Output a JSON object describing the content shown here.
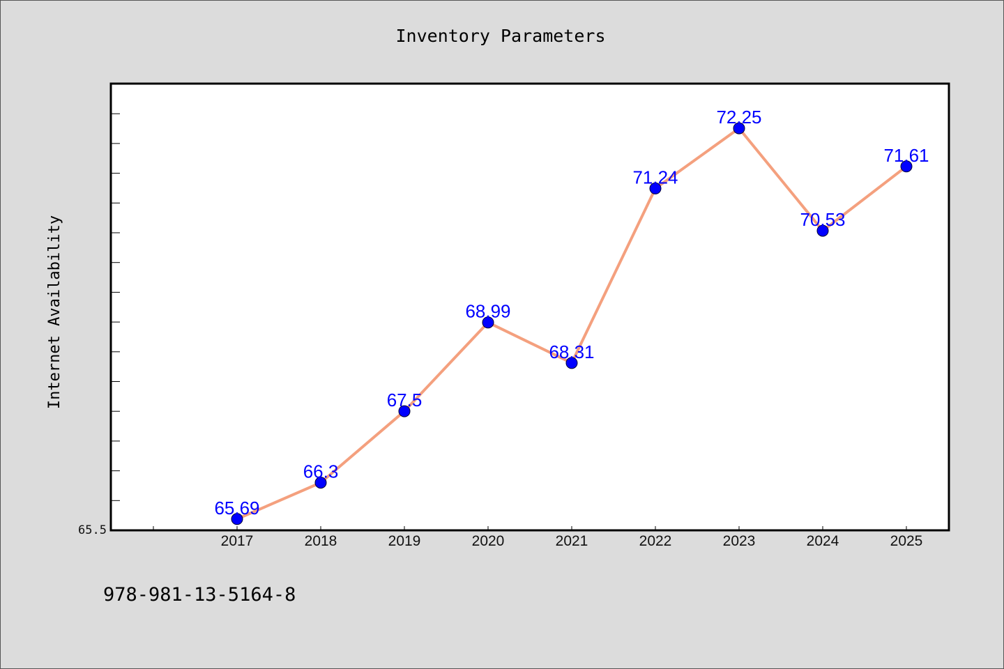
{
  "chart_data": {
    "type": "line",
    "title": "Inventory Parameters",
    "xlabel": "",
    "ylabel": "Internet Availability",
    "categories": [
      "2017",
      "2018",
      "2019",
      "2020",
      "2021",
      "2022",
      "2023",
      "2024",
      "2025"
    ],
    "series": [
      {
        "values": [
          65.69,
          66.3,
          67.5,
          68.99,
          68.31,
          71.24,
          72.25,
          70.53,
          71.61
        ],
        "labels": [
          "65.69",
          "66.3",
          "67.5",
          "68.99",
          "68.31",
          "71.24",
          "72.25",
          "70.53",
          "71.61"
        ],
        "line_color": "#f4a07e",
        "marker_color": "#0000ff"
      }
    ],
    "ylim": [
      65.5,
      73.0
    ],
    "yticks": [
      "65.5"
    ],
    "grid": false,
    "legend": "none"
  },
  "footer": {
    "isbn": "978-981-13-5164-8"
  },
  "colors": {
    "background": "#dcdcdc",
    "plot_background": "#ffffff",
    "line": "#f4a07e",
    "marker": "#0000ff",
    "data_label": "#0000ff"
  }
}
